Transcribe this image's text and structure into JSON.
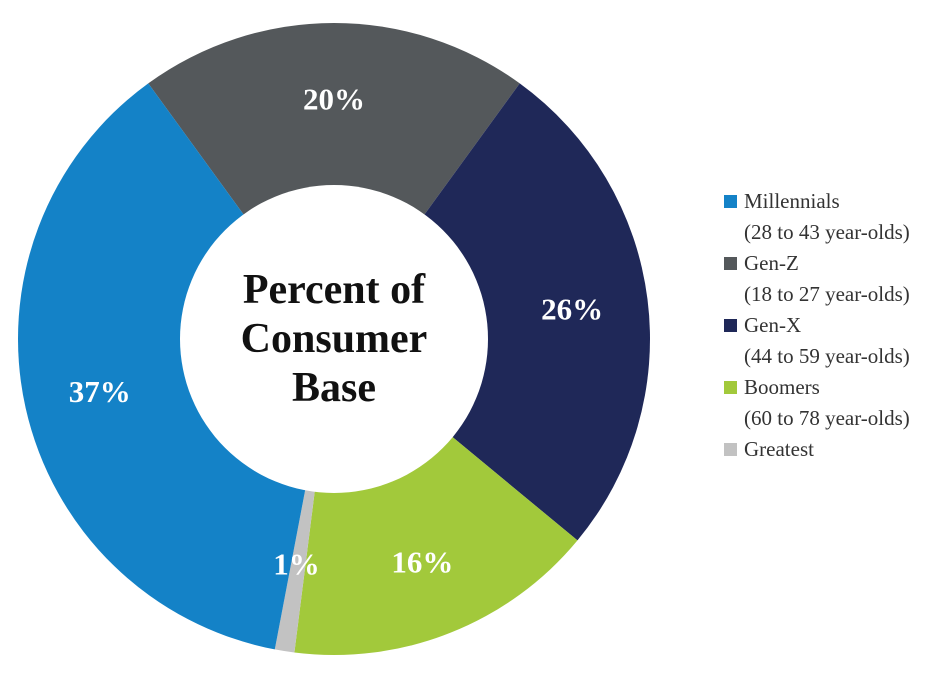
{
  "chart_data": {
    "type": "pie",
    "donut": true,
    "center_label": [
      "Percent of",
      "Consumer",
      "Base"
    ],
    "slices": [
      {
        "name": "Gen-Z",
        "sub": "(18 to 27 year-olds)",
        "value": 20,
        "label": "20%",
        "color": "#54585B"
      },
      {
        "name": "Gen-X",
        "sub": "(44 to 59 year-olds)",
        "value": 26,
        "label": "26%",
        "color": "#1F2858"
      },
      {
        "name": "Boomers",
        "sub": "(60 to 78 year-olds)",
        "value": 16,
        "label": "16%",
        "color": "#A2C93B"
      },
      {
        "name": "Greatest",
        "sub": "",
        "value": 1,
        "label": "1%",
        "color": "#C2C2C2"
      },
      {
        "name": "Millennials",
        "sub": "(28 to 43 year-olds)",
        "value": 37,
        "label": "37%",
        "color": "#1482C7"
      }
    ],
    "legend": {
      "position": "right",
      "order": [
        "Millennials",
        "Gen-Z",
        "Gen-X",
        "Boomers",
        "Greatest"
      ]
    }
  }
}
